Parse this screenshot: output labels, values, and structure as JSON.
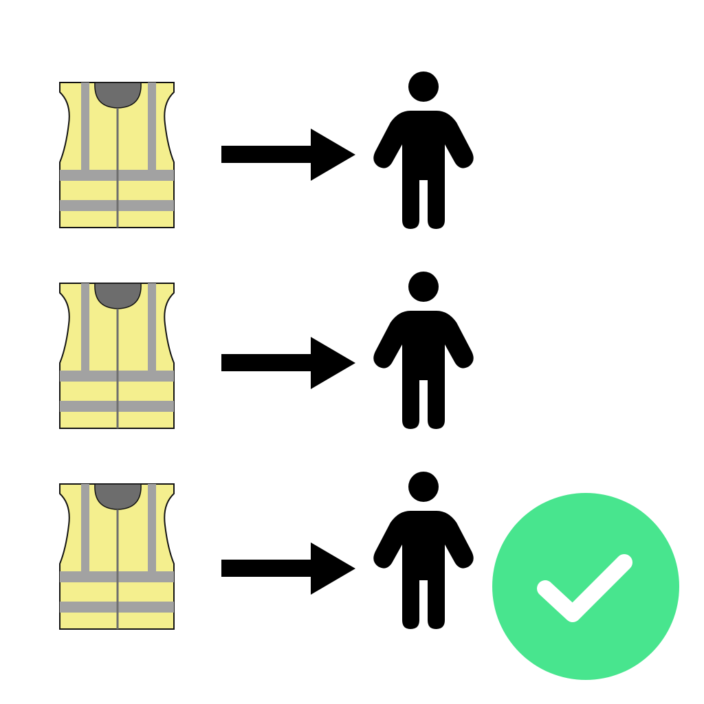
{
  "diagram": {
    "rows": [
      {
        "icons": [
          "safety-vest-icon",
          "arrow-right-icon",
          "person-icon"
        ],
        "confirmed": false
      },
      {
        "icons": [
          "safety-vest-icon",
          "arrow-right-icon",
          "person-icon"
        ],
        "confirmed": false
      },
      {
        "icons": [
          "safety-vest-icon",
          "arrow-right-icon",
          "person-icon"
        ],
        "confirmed": true
      }
    ],
    "confirmation_icon": "checkmark-circle-icon"
  },
  "colors": {
    "background": "#ffffff",
    "vest_fabric": "#f4ef8e",
    "vest_reflective": "#a2a2a2",
    "vest_collar": "#6d6d6d",
    "vest_outline": "#111111",
    "arrow": "#000000",
    "person": "#000000",
    "check_circle": "#48e58e",
    "check_mark": "#ffffff"
  }
}
